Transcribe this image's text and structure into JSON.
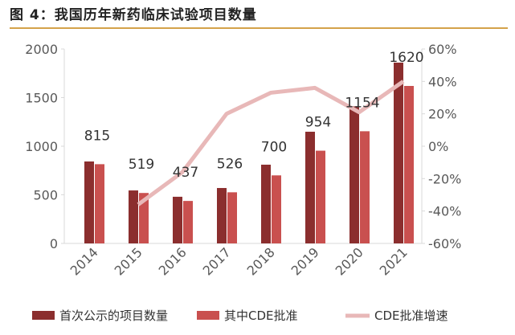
{
  "title": "图 4：我国历年新药临床试验项目数量",
  "chart_data": {
    "type": "bar",
    "categories": [
      "2014",
      "2015",
      "2016",
      "2017",
      "2018",
      "2019",
      "2020",
      "2021"
    ],
    "series": [
      {
        "name": "首次公示的项目数量",
        "type": "bar",
        "axis": "left",
        "color": "#8b2e2e",
        "values": [
          843,
          545,
          480,
          570,
          810,
          1149,
          1410,
          1860
        ]
      },
      {
        "name": "其中CDE批准",
        "type": "bar",
        "axis": "left",
        "color": "#c9504f",
        "values": [
          815,
          519,
          437,
          526,
          700,
          954,
          1154,
          1620
        ],
        "labels": [
          "815",
          "519",
          "437",
          "526",
          "700",
          "954",
          "1154",
          "1620"
        ]
      },
      {
        "name": "CDE批准增速",
        "type": "line",
        "axis": "right",
        "color": "#e8b8b8",
        "values": [
          null,
          -36,
          -16,
          20,
          33,
          36,
          21,
          40
        ]
      }
    ],
    "yleft": {
      "lim": [
        0,
        2000
      ],
      "ticks": [
        "0",
        "500",
        "1000",
        "1500",
        "2000"
      ]
    },
    "yright": {
      "lim": [
        -60,
        60
      ],
      "ticks": [
        "-60%",
        "-40%",
        "-20%",
        "0%",
        "20%",
        "40%",
        "60%"
      ]
    },
    "grid": false,
    "legend": "bottom"
  }
}
